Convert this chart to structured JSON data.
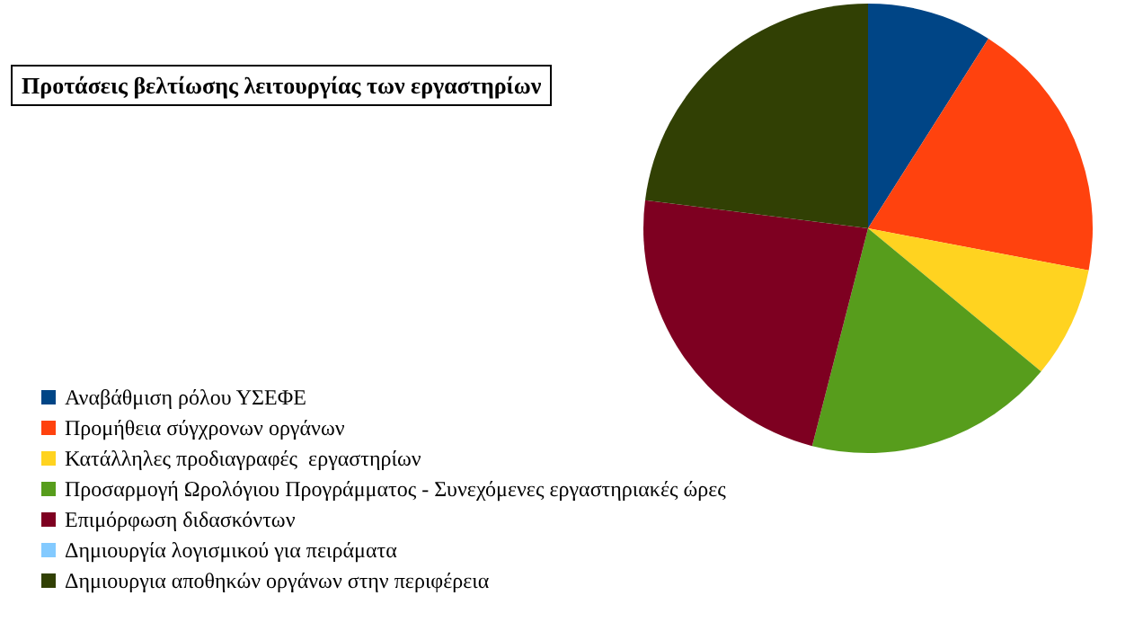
{
  "chart_data": {
    "type": "pie",
    "title": "Προτάσεις βελτίωσης λειτουργίας των εργαστηρίων",
    "categories": [
      "Αναβάθμιση ρόλου ΥΣΕΦΕ",
      "Προμήθεια σύγχρονων οργάνων",
      "Κατάλληλες προδιαγραφές  εργαστηρίων",
      "Προσαρμογή Ωρολόγιου Προγράμματος - Συνεχόμενες εργαστηριακές ώρες",
      "Επιμόρφωση διδασκόντων",
      "Δημιουργία λογισμικού για πειράματα",
      "Δημιουργια αποθηκών οργάνων στην περιφέρεια"
    ],
    "values": [
      9,
      19,
      8,
      18,
      23,
      0,
      23
    ],
    "colors": [
      "#004586",
      "#ff420e",
      "#ffd320",
      "#579d1c",
      "#7e0021",
      "#83caff",
      "#314004"
    ],
    "legend": "bottom left"
  }
}
